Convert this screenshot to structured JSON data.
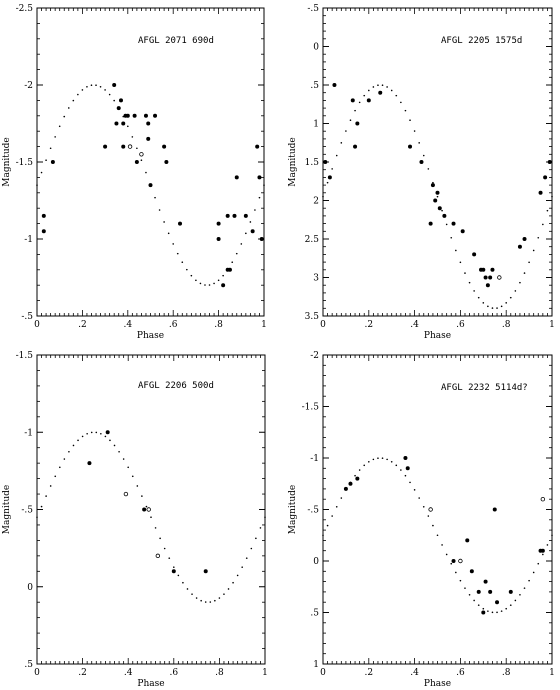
{
  "chart_data": [
    {
      "type": "scatter",
      "title": "AFGL 2071   690d",
      "xlabel": "Phase",
      "ylabel": "Magnitude",
      "xlim": [
        0,
        1
      ],
      "ylim": [
        -2.5,
        -0.5
      ],
      "y_inverted": true,
      "xticks": [
        0,
        0.2,
        0.4,
        0.6,
        0.8,
        1
      ],
      "xtick_labels": [
        "0",
        ".2",
        ".4",
        ".6",
        ".8",
        "1"
      ],
      "yticks": [
        -2.5,
        -2,
        -1.5,
        -1,
        -0.5
      ],
      "ytick_labels": [
        "-2.5",
        "-2",
        "-1.5",
        "-1",
        "-.5"
      ],
      "model_curve": {
        "type": "sine",
        "mean": -1.35,
        "amplitude": 0.65,
        "peak_phase": 0.25
      },
      "series": [
        {
          "marker": "filled",
          "points": [
            [
              0.03,
              -1.15
            ],
            [
              0.03,
              -1.05
            ],
            [
              0.07,
              -1.5
            ],
            [
              0.3,
              -1.6
            ],
            [
              0.34,
              -2.0
            ],
            [
              0.35,
              -1.75
            ],
            [
              0.36,
              -1.85
            ],
            [
              0.37,
              -1.9
            ],
            [
              0.38,
              -1.75
            ],
            [
              0.38,
              -1.6
            ],
            [
              0.39,
              -1.8
            ],
            [
              0.4,
              -1.8
            ],
            [
              0.43,
              -1.8
            ],
            [
              0.44,
              -1.5
            ],
            [
              0.48,
              -1.8
            ],
            [
              0.49,
              -1.75
            ],
            [
              0.49,
              -1.65
            ],
            [
              0.5,
              -1.35
            ],
            [
              0.52,
              -1.8
            ],
            [
              0.56,
              -1.6
            ],
            [
              0.57,
              -1.5
            ],
            [
              0.63,
              -1.1
            ],
            [
              0.8,
              -1.1
            ],
            [
              0.8,
              -1.0
            ],
            [
              0.82,
              -0.7
            ],
            [
              0.84,
              -0.8
            ],
            [
              0.84,
              -1.15
            ],
            [
              0.85,
              -0.8
            ],
            [
              0.87,
              -1.15
            ],
            [
              0.88,
              -1.4
            ],
            [
              0.92,
              -1.15
            ],
            [
              0.95,
              -1.05
            ],
            [
              0.97,
              -1.6
            ],
            [
              0.98,
              -1.4
            ],
            [
              0.99,
              -1.0
            ]
          ]
        },
        {
          "marker": "open",
          "points": [
            [
              0.41,
              -1.6
            ],
            [
              0.46,
              -1.55
            ]
          ]
        }
      ]
    },
    {
      "type": "scatter",
      "title": "AFGL 2205   1575d",
      "xlabel": "Phase",
      "ylabel": "Magnitude",
      "xlim": [
        0,
        1
      ],
      "ylim": [
        -0.5,
        3.5
      ],
      "y_inverted": true,
      "xticks": [
        0,
        0.2,
        0.4,
        0.6,
        0.8,
        1
      ],
      "xtick_labels": [
        "0",
        ".2",
        ".4",
        ".6",
        ".8",
        "1"
      ],
      "yticks": [
        -0.5,
        0,
        0.5,
        1,
        1.5,
        2,
        2.5,
        3,
        3.5
      ],
      "ytick_labels": [
        "-.5",
        "0",
        ".5",
        "1",
        "1.5",
        "2",
        "2.5",
        "3",
        "3.5"
      ],
      "model_curve": {
        "type": "sine",
        "mean": 1.95,
        "amplitude": 1.45,
        "peak_phase": 0.25
      },
      "series": [
        {
          "marker": "filled",
          "points": [
            [
              0.01,
              1.5
            ],
            [
              0.03,
              1.7
            ],
            [
              0.05,
              0.5
            ],
            [
              0.13,
              0.7
            ],
            [
              0.14,
              1.3
            ],
            [
              0.15,
              1.0
            ],
            [
              0.2,
              0.7
            ],
            [
              0.25,
              0.6
            ],
            [
              0.38,
              1.3
            ],
            [
              0.43,
              1.5
            ],
            [
              0.47,
              2.3
            ],
            [
              0.48,
              1.8
            ],
            [
              0.49,
              2.0
            ],
            [
              0.5,
              1.9
            ],
            [
              0.51,
              2.1
            ],
            [
              0.53,
              2.2
            ],
            [
              0.57,
              2.3
            ],
            [
              0.61,
              2.4
            ],
            [
              0.66,
              2.7
            ],
            [
              0.69,
              2.9
            ],
            [
              0.7,
              2.9
            ],
            [
              0.71,
              3.0
            ],
            [
              0.72,
              3.1
            ],
            [
              0.73,
              3.0
            ],
            [
              0.74,
              2.9
            ],
            [
              0.86,
              2.6
            ],
            [
              0.88,
              2.5
            ],
            [
              0.95,
              1.9
            ],
            [
              0.97,
              1.7
            ],
            [
              0.99,
              1.5
            ]
          ]
        },
        {
          "marker": "open",
          "points": [
            [
              0.77,
              3.0
            ]
          ]
        }
      ]
    },
    {
      "type": "scatter",
      "title": "AFGL 2206   500d",
      "xlabel": "Phase",
      "ylabel": "Magnitude",
      "xlim": [
        0,
        1
      ],
      "ylim": [
        -1.5,
        0.5
      ],
      "y_inverted": true,
      "xticks": [
        0,
        0.2,
        0.4,
        0.6,
        0.8,
        1
      ],
      "xtick_labels": [
        "0",
        ".2",
        ".4",
        ".6",
        ".8",
        "1"
      ],
      "yticks": [
        -1.5,
        -1,
        -0.5,
        0,
        0.5
      ],
      "ytick_labels": [
        "-1.5",
        "-1",
        "-.5",
        "0",
        ".5"
      ],
      "model_curve": {
        "type": "sine",
        "mean": -0.45,
        "amplitude": 0.55,
        "peak_phase": 0.25
      },
      "series": [
        {
          "marker": "filled",
          "points": [
            [
              0.23,
              -0.8
            ],
            [
              0.31,
              -1.0
            ],
            [
              0.47,
              -0.5
            ],
            [
              0.6,
              -0.1
            ],
            [
              0.74,
              -0.1
            ]
          ]
        },
        {
          "marker": "open",
          "points": [
            [
              0.39,
              -0.6
            ],
            [
              0.49,
              -0.5
            ],
            [
              0.53,
              -0.2
            ]
          ]
        }
      ]
    },
    {
      "type": "scatter",
      "title": "AFGL 2232   5114d?",
      "xlabel": "Phase",
      "ylabel": "Magnitude",
      "xlim": [
        0,
        1
      ],
      "ylim": [
        -2,
        1
      ],
      "y_inverted": true,
      "xticks": [
        0,
        0.2,
        0.4,
        0.6,
        0.8,
        1
      ],
      "xtick_labels": [
        "0",
        ".2",
        ".4",
        ".6",
        ".8",
        "1"
      ],
      "yticks": [
        -2,
        -1.5,
        -1,
        -0.5,
        0,
        0.5,
        1
      ],
      "ytick_labels": [
        "-2",
        "-1.5",
        "-1",
        "-.5",
        "0",
        ".5",
        "1"
      ],
      "model_curve": {
        "type": "sine",
        "mean": -0.25,
        "amplitude": 0.75,
        "peak_phase": 0.25
      },
      "series": [
        {
          "marker": "filled",
          "points": [
            [
              0.1,
              -0.7
            ],
            [
              0.12,
              -0.75
            ],
            [
              0.15,
              -0.8
            ],
            [
              0.36,
              -1.0
            ],
            [
              0.37,
              -0.9
            ],
            [
              0.57,
              0.0
            ],
            [
              0.63,
              -0.2
            ],
            [
              0.65,
              0.1
            ],
            [
              0.68,
              0.3
            ],
            [
              0.7,
              0.5
            ],
            [
              0.71,
              0.2
            ],
            [
              0.73,
              0.3
            ],
            [
              0.75,
              -0.5
            ],
            [
              0.76,
              0.4
            ],
            [
              0.82,
              0.3
            ],
            [
              0.95,
              -0.1
            ],
            [
              0.96,
              -0.1
            ]
          ]
        },
        {
          "marker": "open",
          "points": [
            [
              0.47,
              -0.5
            ],
            [
              0.6,
              0.0
            ],
            [
              0.96,
              -0.6
            ]
          ]
        }
      ]
    }
  ]
}
